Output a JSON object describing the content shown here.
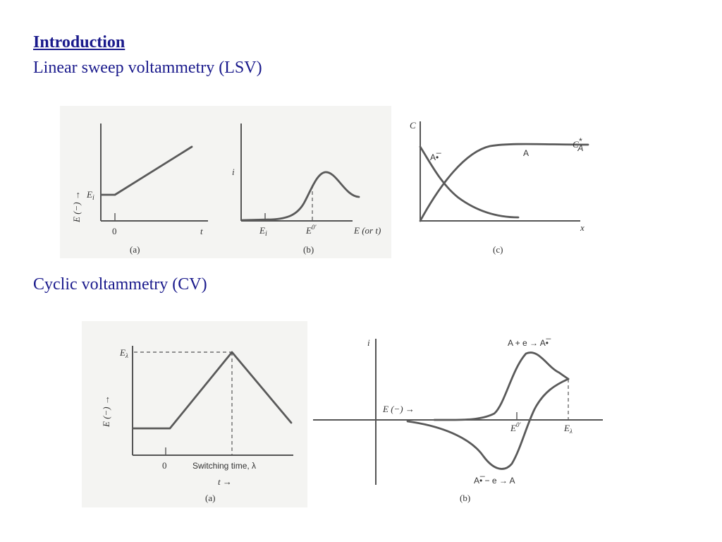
{
  "slide": {
    "title": "Introduction",
    "lsv_heading": "Linear sweep voltammetry (LSV)",
    "cv_heading": "Cyclic voltammetry (CV)"
  },
  "lsv": {
    "a": {
      "ylabel": "E (−) →",
      "ei_label": "E",
      "ei_sub": "i",
      "x_zero": "0",
      "x_label": "t",
      "caption": "(a)"
    },
    "b": {
      "ylabel": "i",
      "ei_label": "E",
      "ei_sub": "i",
      "e0_label": "E",
      "e0_sup": "0′",
      "x_label": "E (or t)",
      "caption": "(b)"
    },
    "c": {
      "ylabel": "C",
      "xlabel": "x",
      "curve_a_label": "A",
      "curve_arad_label": "A•̅",
      "cstar_label": "C",
      "cstar_sup": "*",
      "cstar_sub": "A",
      "caption": "(c)"
    }
  },
  "cv": {
    "a": {
      "ylabel": "E (−) →",
      "elambda_label": "E",
      "elambda_sub": "λ",
      "x_zero": "0",
      "switching_label": "Switching time, λ",
      "t_label": "t →",
      "caption": "(a)"
    },
    "b": {
      "ylabel": "i",
      "e_arrow_label": "E (−) →",
      "e0_label": "E",
      "e0_sup": "0′",
      "elambda_label": "E",
      "elambda_sub": "λ",
      "reduction_label": "A + e → A•̅",
      "oxidation_label": "A•̅ − e → A",
      "caption": "(b)"
    }
  }
}
